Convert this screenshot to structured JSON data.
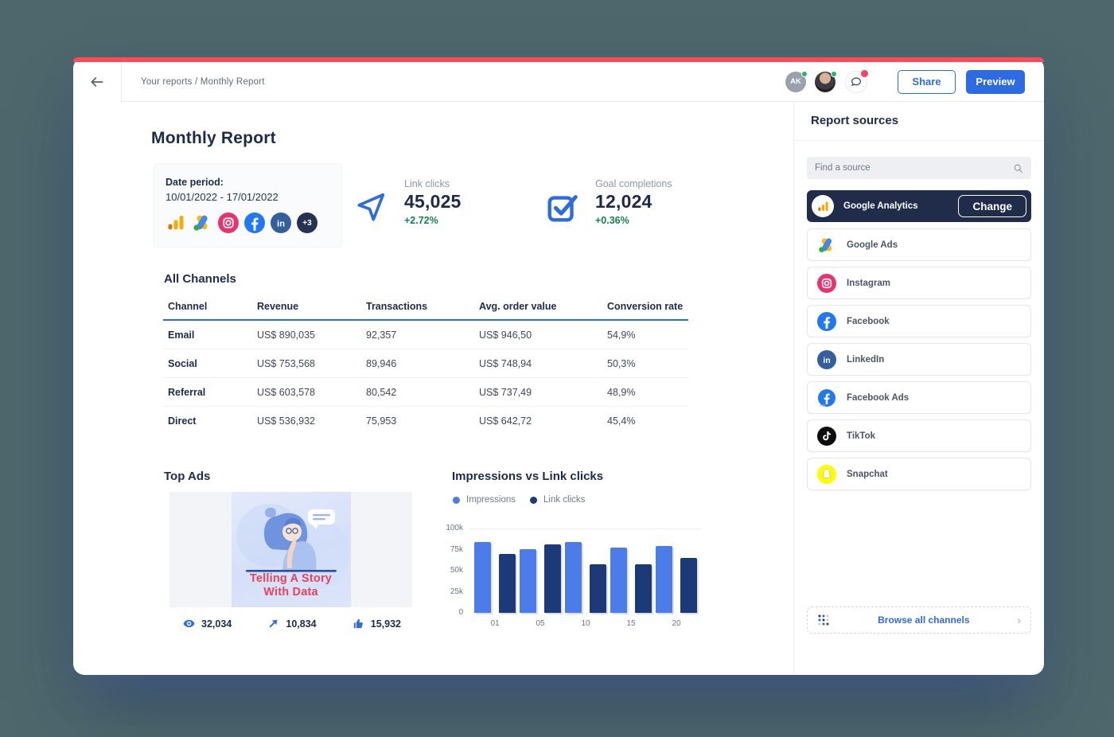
{
  "header": {
    "breadcrumb": "Your reports / Monthly Report",
    "avatar_initials": "AK",
    "share_label": "Share",
    "preview_label": "Preview"
  },
  "report": {
    "title": "Monthly Report",
    "date_period_label": "Date period:",
    "date_period_value": "10/01/2022 - 17/01/2022",
    "source_icons": [
      "google-analytics-icon",
      "google-ads-icon",
      "instagram-icon",
      "facebook-icon",
      "linkedin-icon"
    ],
    "extra_sources_badge": "+3",
    "metrics": [
      {
        "icon": "cursor-icon",
        "label": "Link clicks",
        "value": "45,025",
        "delta": "+2.72%"
      },
      {
        "icon": "checkbox-icon",
        "label": "Goal completions",
        "value": "12,024",
        "delta": "+0.36%"
      }
    ]
  },
  "channels": {
    "title": "All Channels",
    "columns": [
      "Channel",
      "Revenue",
      "Transactions",
      "Avg. order value",
      "Conversion rate"
    ],
    "rows": [
      [
        "Email",
        "US$ 890,035",
        "92,357",
        "US$ 946,50",
        "54,9%"
      ],
      [
        "Social",
        "US$ 753,568",
        "89,946",
        "US$ 748,94",
        "50,3%"
      ],
      [
        "Referral",
        "US$ 603,578",
        "80,542",
        "US$ 737,49",
        "48,9%"
      ],
      [
        "Direct",
        "US$ 536,932",
        "75,953",
        "US$ 642,72",
        "45,4%"
      ]
    ]
  },
  "top_ads": {
    "title": "Top Ads",
    "ad_text_line1": "Telling A Story",
    "ad_text_line2": "With Data",
    "stats": [
      {
        "icon": "eye-icon",
        "value": "32,034"
      },
      {
        "icon": "send-icon",
        "value": "10,834"
      },
      {
        "icon": "thumbs-up-icon",
        "value": "15,932"
      }
    ]
  },
  "chart_data": {
    "type": "bar",
    "title": "Impressions vs Link clicks",
    "categories": [
      "01",
      "05",
      "10",
      "15",
      "20"
    ],
    "series": [
      {
        "name": "Impressions",
        "color": "#4b7ce9",
        "values": [
          84000,
          75000,
          84000,
          77000,
          79000
        ]
      },
      {
        "name": "Link clicks",
        "color": "#1d3a78",
        "values": [
          70000,
          81000,
          58000,
          58000,
          65000
        ]
      }
    ],
    "ylim": [
      0,
      100000
    ],
    "ytick_labels": [
      "100k",
      "75k",
      "50k",
      "25k",
      "0"
    ],
    "legend_position": "top-left",
    "grid": "top-line-only"
  },
  "sidebar": {
    "title": "Report sources",
    "search_placeholder": "Find a source",
    "selected": {
      "icon": "google-analytics-icon",
      "label": "Google Analytics",
      "button": "Change"
    },
    "sources": [
      {
        "icon": "google-ads-icon",
        "label": "Google Ads"
      },
      {
        "icon": "instagram-icon",
        "label": "Instagram"
      },
      {
        "icon": "facebook-icon",
        "label": "Facebook"
      },
      {
        "icon": "linkedin-icon",
        "label": "LinkedIn"
      },
      {
        "icon": "facebook-ads-icon",
        "label": "Facebook Ads"
      },
      {
        "icon": "tiktok-icon",
        "label": "TikTok"
      },
      {
        "icon": "snapchat-icon",
        "label": "Snapchat"
      }
    ],
    "browse_label": "Browse all channels"
  },
  "colors": {
    "page_background": "#4d676d",
    "top_strip_red": "#fb4b59",
    "accent_blue": "#2d6be4",
    "positive_green": "#13814f",
    "dark_navy_text": "#1c2b4a",
    "selected_pill_navy": "#202c49"
  }
}
